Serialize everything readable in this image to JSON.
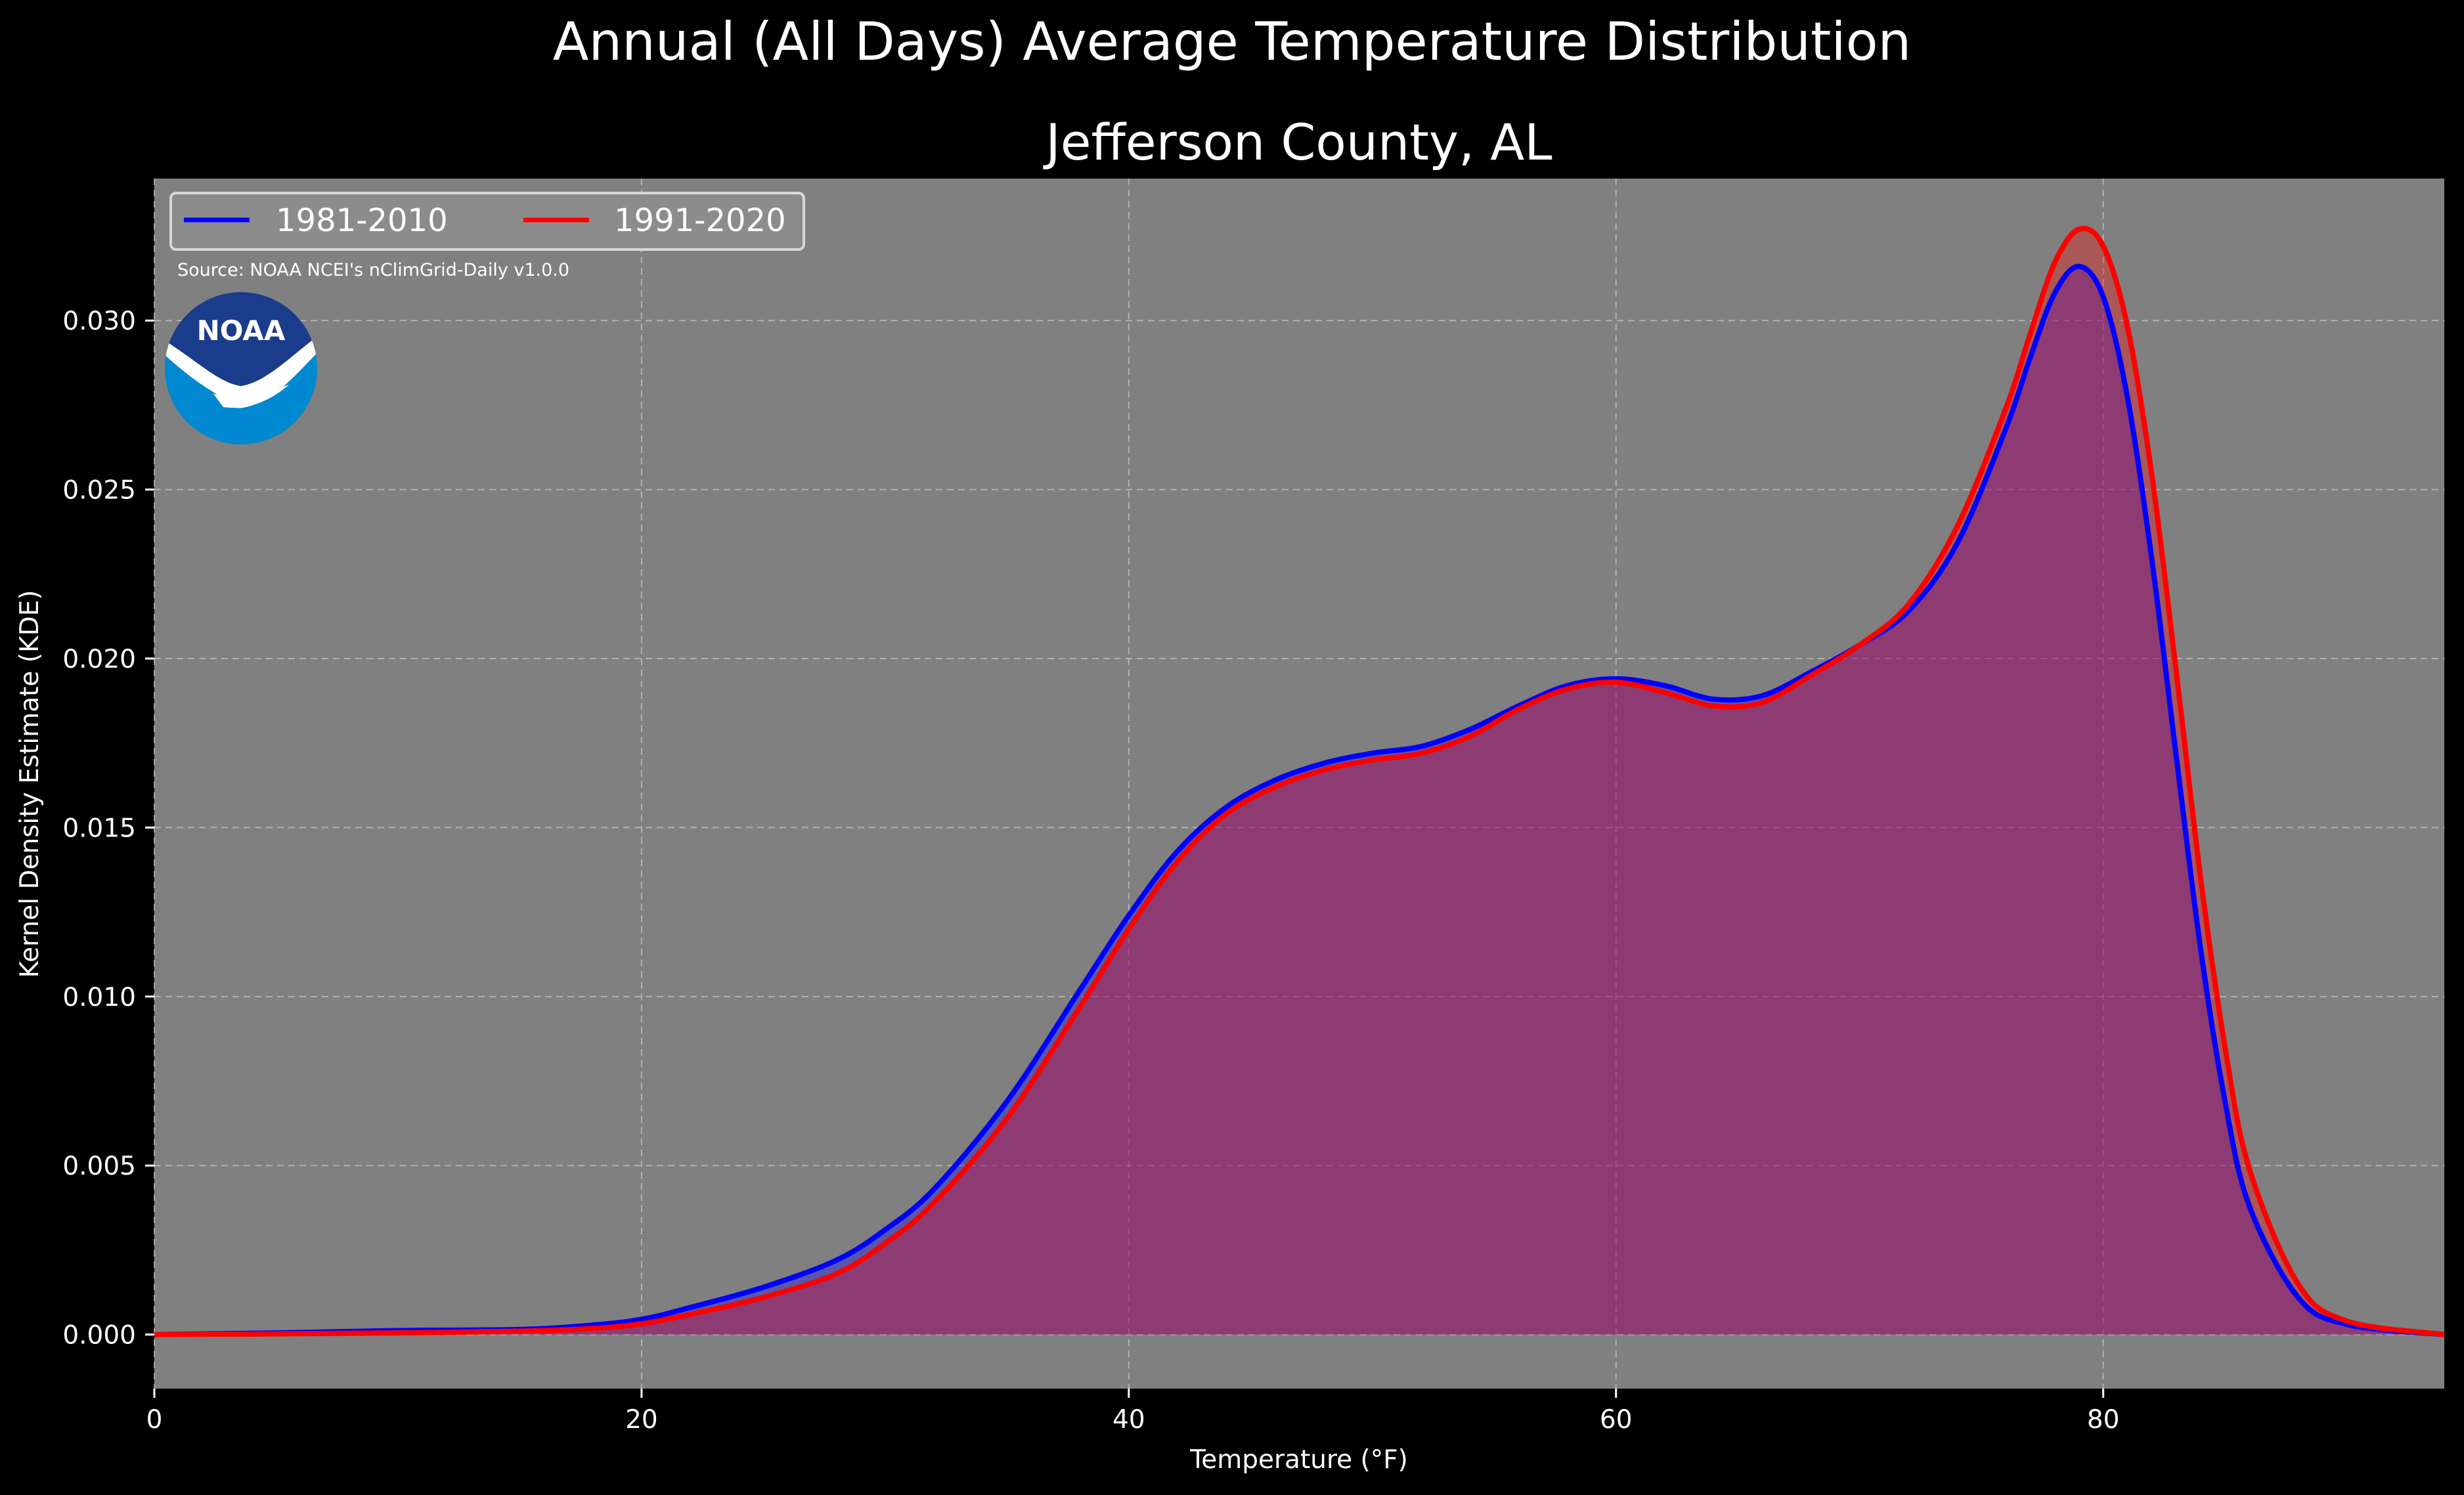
{
  "chart_data": {
    "type": "area",
    "suptitle": "Annual (All Days) Average Temperature Distribution",
    "title": "Jefferson County, AL",
    "xlabel": "Temperature (°F)",
    "ylabel": "Kernel Density Estimate (KDE)",
    "xlim": [
      0,
      94
    ],
    "ylim": [
      -0.0016,
      0.0342
    ],
    "xticks": [
      0,
      20,
      40,
      60,
      80
    ],
    "yticks": [
      0.0,
      0.005,
      0.01,
      0.015,
      0.02,
      0.025,
      0.03
    ],
    "xtick_labels": [
      "0",
      "20",
      "40",
      "60",
      "80"
    ],
    "ytick_labels": [
      "0.000",
      "0.005",
      "0.010",
      "0.015",
      "0.020",
      "0.025",
      "0.030"
    ],
    "grid": true,
    "legend_position": "top-left",
    "annotation": "Source: NOAA NCEI's nClimGrid-Daily v1.0.0",
    "logo_text": "NOAA",
    "series": [
      {
        "name": "1981-2010",
        "color": "#0000ff",
        "x": [
          0,
          5,
          10,
          15,
          18,
          20,
          22,
          25,
          28,
          30,
          32,
          35,
          38,
          40,
          42,
          44,
          46,
          48,
          50,
          52,
          54,
          56,
          58,
          60,
          62,
          64,
          66,
          68,
          70,
          72,
          74,
          76,
          77,
          78,
          79,
          80,
          81,
          82,
          83,
          84,
          85,
          86,
          88,
          90,
          94
        ],
        "y": [
          0.0,
          5e-05,
          0.00012,
          0.00015,
          0.00028,
          0.00045,
          0.0008,
          0.0014,
          0.0022,
          0.0031,
          0.0043,
          0.0069,
          0.0102,
          0.0124,
          0.0143,
          0.0156,
          0.0164,
          0.0169,
          0.0172,
          0.0174,
          0.0179,
          0.0186,
          0.0192,
          0.0194,
          0.0192,
          0.0188,
          0.0189,
          0.0196,
          0.0204,
          0.0214,
          0.0234,
          0.0268,
          0.0289,
          0.0308,
          0.0316,
          0.0307,
          0.0277,
          0.0229,
          0.0171,
          0.0114,
          0.0069,
          0.0038,
          0.0011,
          0.0003,
          0.0
        ]
      },
      {
        "name": "1991-2020",
        "color": "#ff0000",
        "x": [
          0,
          5,
          10,
          15,
          18,
          20,
          22,
          25,
          28,
          30,
          32,
          35,
          38,
          40,
          42,
          44,
          46,
          48,
          50,
          52,
          54,
          56,
          58,
          60,
          62,
          64,
          66,
          68,
          70,
          72,
          74,
          76,
          77,
          78,
          79,
          80,
          81,
          82,
          83,
          84,
          85,
          86,
          88,
          90,
          94
        ],
        "y": [
          0.0,
          2e-05,
          5e-05,
          0.0001,
          0.00018,
          0.00032,
          0.0006,
          0.0011,
          0.0018,
          0.0027,
          0.0039,
          0.0064,
          0.0097,
          0.012,
          0.014,
          0.0154,
          0.0162,
          0.0167,
          0.017,
          0.0172,
          0.0177,
          0.0185,
          0.0191,
          0.0193,
          0.019,
          0.0186,
          0.0187,
          0.0195,
          0.0204,
          0.0216,
          0.0239,
          0.0274,
          0.0296,
          0.0317,
          0.0327,
          0.0322,
          0.0298,
          0.0254,
          0.0196,
          0.0135,
          0.0085,
          0.0049,
          0.0015,
          0.0004,
          0.0
        ]
      }
    ]
  },
  "style": {
    "background": "#000000",
    "plot_background": "#808080",
    "grid_color": "#c8c8c8",
    "fill_color": "#a0155a",
    "noaa_dark_blue": "#1a3c8a",
    "noaa_light_blue": "#0088d1"
  }
}
